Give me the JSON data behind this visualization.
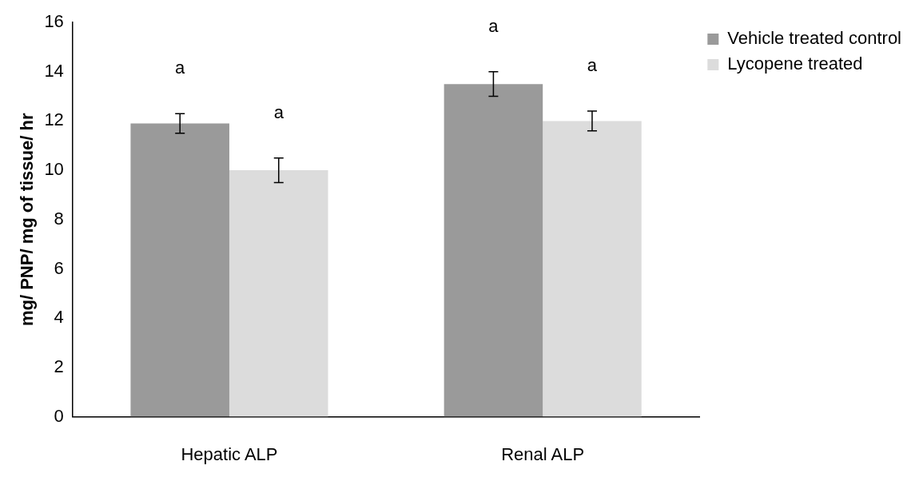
{
  "chart_data": {
    "type": "bar",
    "ylabel": "mg/ PNP/ mg of tissue/ hr",
    "categories": [
      "Hepatic ALP",
      "Renal ALP"
    ],
    "series": [
      {
        "name": "Vehicle treated control",
        "color": "#9a9a9a",
        "values": [
          11.9,
          13.5
        ],
        "errors": [
          0.4,
          0.5
        ],
        "value_labels": [
          "a",
          "a"
        ]
      },
      {
        "name": "Lycopene treated",
        "color": "#dcdcdc",
        "values": [
          10.0,
          12.0
        ],
        "errors": [
          0.5,
          0.4
        ],
        "value_labels": [
          "a",
          "a"
        ]
      }
    ],
    "ylim": [
      0,
      16
    ],
    "yticks": [
      0,
      2,
      4,
      6,
      8,
      10,
      12,
      14,
      16
    ],
    "grid": false,
    "legend": "top right"
  }
}
